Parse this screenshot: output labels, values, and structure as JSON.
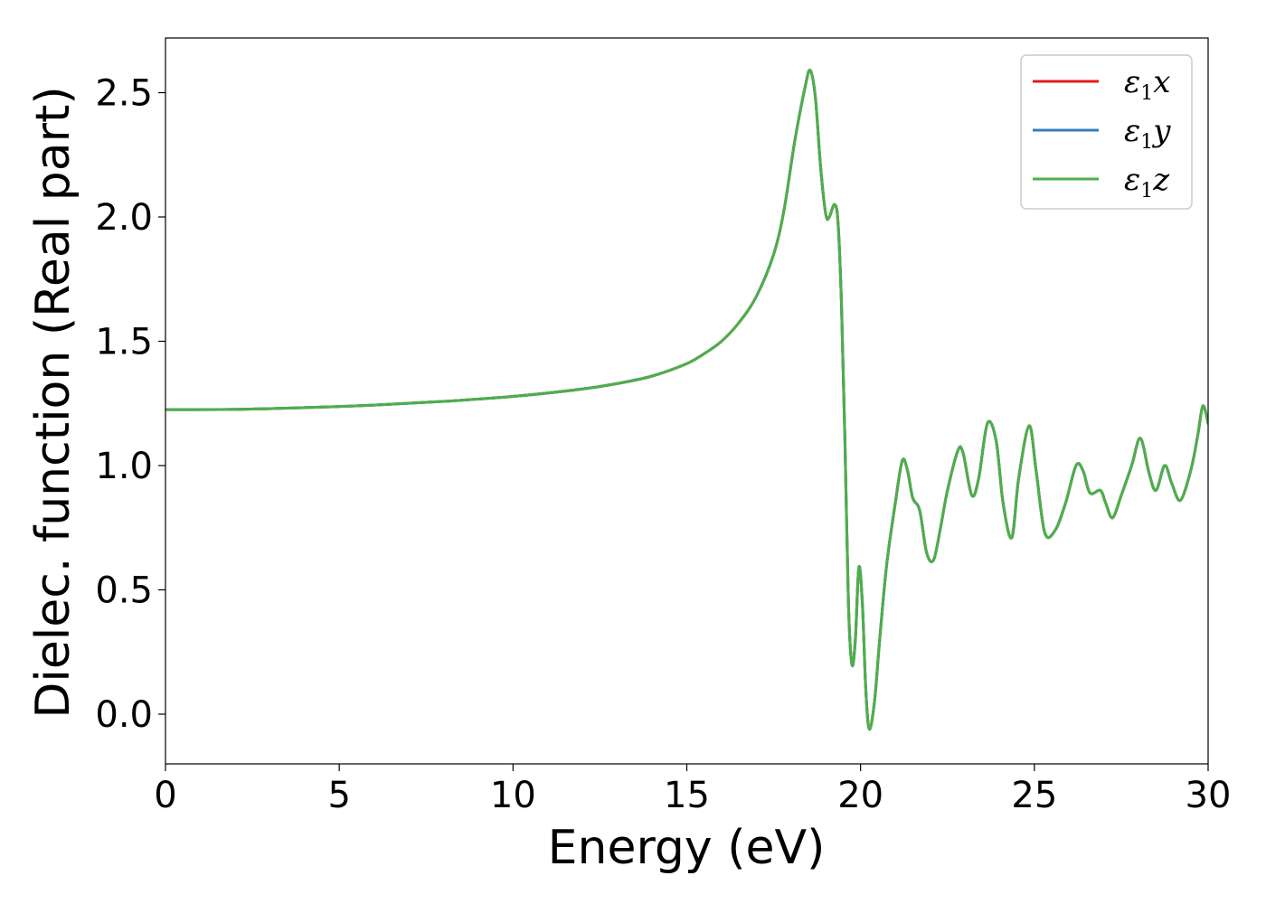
{
  "chart_data": {
    "type": "line",
    "title": "",
    "xlabel": "Energy (eV)",
    "ylabel": "Dielec. function (Real part)",
    "xlim": [
      0,
      30
    ],
    "ylim": [
      -0.2,
      2.72
    ],
    "x_ticks": [
      0,
      5,
      10,
      15,
      20,
      25,
      30
    ],
    "y_ticks": [
      0.0,
      0.5,
      1.0,
      1.5,
      2.0,
      2.5
    ],
    "x_tick_labels": [
      "0",
      "5",
      "10",
      "15",
      "20",
      "25",
      "30"
    ],
    "y_tick_labels": [
      "0.0",
      "0.5",
      "1.0",
      "1.5",
      "2.0",
      "2.5"
    ],
    "grid": false,
    "legend_position": "top-right",
    "x": [
      0,
      2,
      4,
      6,
      8,
      10,
      12,
      13,
      14,
      15,
      15.5,
      16,
      16.5,
      17,
      17.5,
      17.8,
      18.1,
      18.4,
      18.55,
      18.7,
      18.85,
      19.0,
      19.1,
      19.25,
      19.35,
      19.45,
      19.55,
      19.65,
      19.75,
      19.85,
      19.95,
      20.05,
      20.15,
      20.25,
      20.4,
      20.55,
      20.75,
      21.0,
      21.2,
      21.35,
      21.5,
      21.7,
      21.9,
      22.1,
      22.3,
      22.5,
      22.8,
      22.95,
      23.2,
      23.4,
      23.65,
      23.9,
      24.1,
      24.35,
      24.55,
      24.85,
      25.05,
      25.3,
      25.6,
      25.9,
      26.2,
      26.4,
      26.6,
      26.9,
      27.05,
      27.25,
      27.5,
      27.8,
      28.05,
      28.3,
      28.5,
      28.75,
      28.95,
      29.2,
      29.5,
      29.7,
      29.85,
      30.0
    ],
    "series": [
      {
        "name": "ε1x",
        "color": "#e41a1c",
        "values": [
          1.225,
          1.226,
          1.233,
          1.243,
          1.258,
          1.278,
          1.308,
          1.33,
          1.36,
          1.41,
          1.45,
          1.5,
          1.575,
          1.68,
          1.85,
          2.03,
          2.3,
          2.52,
          2.59,
          2.48,
          2.2,
          2.01,
          2.0,
          2.05,
          1.98,
          1.65,
          1.1,
          0.45,
          0.2,
          0.3,
          0.59,
          0.45,
          0.1,
          -0.06,
          0.05,
          0.3,
          0.6,
          0.85,
          1.02,
          0.98,
          0.87,
          0.82,
          0.65,
          0.62,
          0.75,
          0.9,
          1.06,
          1.05,
          0.88,
          0.95,
          1.17,
          1.1,
          0.85,
          0.71,
          0.95,
          1.16,
          0.98,
          0.73,
          0.74,
          0.85,
          1.0,
          0.98,
          0.89,
          0.9,
          0.85,
          0.79,
          0.88,
          1.0,
          1.11,
          0.97,
          0.9,
          1.0,
          0.93,
          0.86,
          0.98,
          1.12,
          1.24,
          1.17
        ]
      },
      {
        "name": "ε1y",
        "color": "#377eb8",
        "values": [
          1.225,
          1.226,
          1.233,
          1.243,
          1.258,
          1.278,
          1.308,
          1.33,
          1.36,
          1.41,
          1.45,
          1.5,
          1.575,
          1.68,
          1.85,
          2.03,
          2.3,
          2.52,
          2.59,
          2.48,
          2.2,
          2.01,
          2.0,
          2.05,
          1.98,
          1.65,
          1.1,
          0.45,
          0.2,
          0.3,
          0.59,
          0.45,
          0.1,
          -0.06,
          0.05,
          0.3,
          0.6,
          0.85,
          1.02,
          0.98,
          0.87,
          0.82,
          0.65,
          0.62,
          0.75,
          0.9,
          1.06,
          1.05,
          0.88,
          0.95,
          1.17,
          1.1,
          0.85,
          0.71,
          0.95,
          1.16,
          0.98,
          0.73,
          0.74,
          0.85,
          1.0,
          0.98,
          0.89,
          0.9,
          0.85,
          0.79,
          0.88,
          1.0,
          1.11,
          0.97,
          0.9,
          1.0,
          0.93,
          0.86,
          0.98,
          1.12,
          1.24,
          1.17
        ]
      },
      {
        "name": "ε1z",
        "color": "#4daf4a",
        "values": [
          1.225,
          1.226,
          1.233,
          1.243,
          1.258,
          1.278,
          1.308,
          1.33,
          1.36,
          1.41,
          1.45,
          1.5,
          1.575,
          1.68,
          1.85,
          2.03,
          2.3,
          2.52,
          2.59,
          2.48,
          2.2,
          2.01,
          2.0,
          2.05,
          1.98,
          1.65,
          1.1,
          0.45,
          0.2,
          0.3,
          0.59,
          0.45,
          0.1,
          -0.06,
          0.05,
          0.3,
          0.6,
          0.85,
          1.02,
          0.98,
          0.87,
          0.82,
          0.65,
          0.62,
          0.75,
          0.9,
          1.06,
          1.05,
          0.88,
          0.95,
          1.17,
          1.1,
          0.85,
          0.71,
          0.95,
          1.16,
          0.98,
          0.73,
          0.74,
          0.85,
          1.0,
          0.98,
          0.89,
          0.9,
          0.85,
          0.79,
          0.88,
          1.0,
          1.11,
          0.97,
          0.9,
          1.0,
          0.93,
          0.86,
          0.98,
          1.12,
          1.24,
          1.17
        ]
      }
    ],
    "legend": [
      {
        "base": "ε",
        "sub": "1",
        "var": "x"
      },
      {
        "base": "ε",
        "sub": "1",
        "var": "y"
      },
      {
        "base": "ε",
        "sub": "1",
        "var": "z"
      }
    ]
  }
}
